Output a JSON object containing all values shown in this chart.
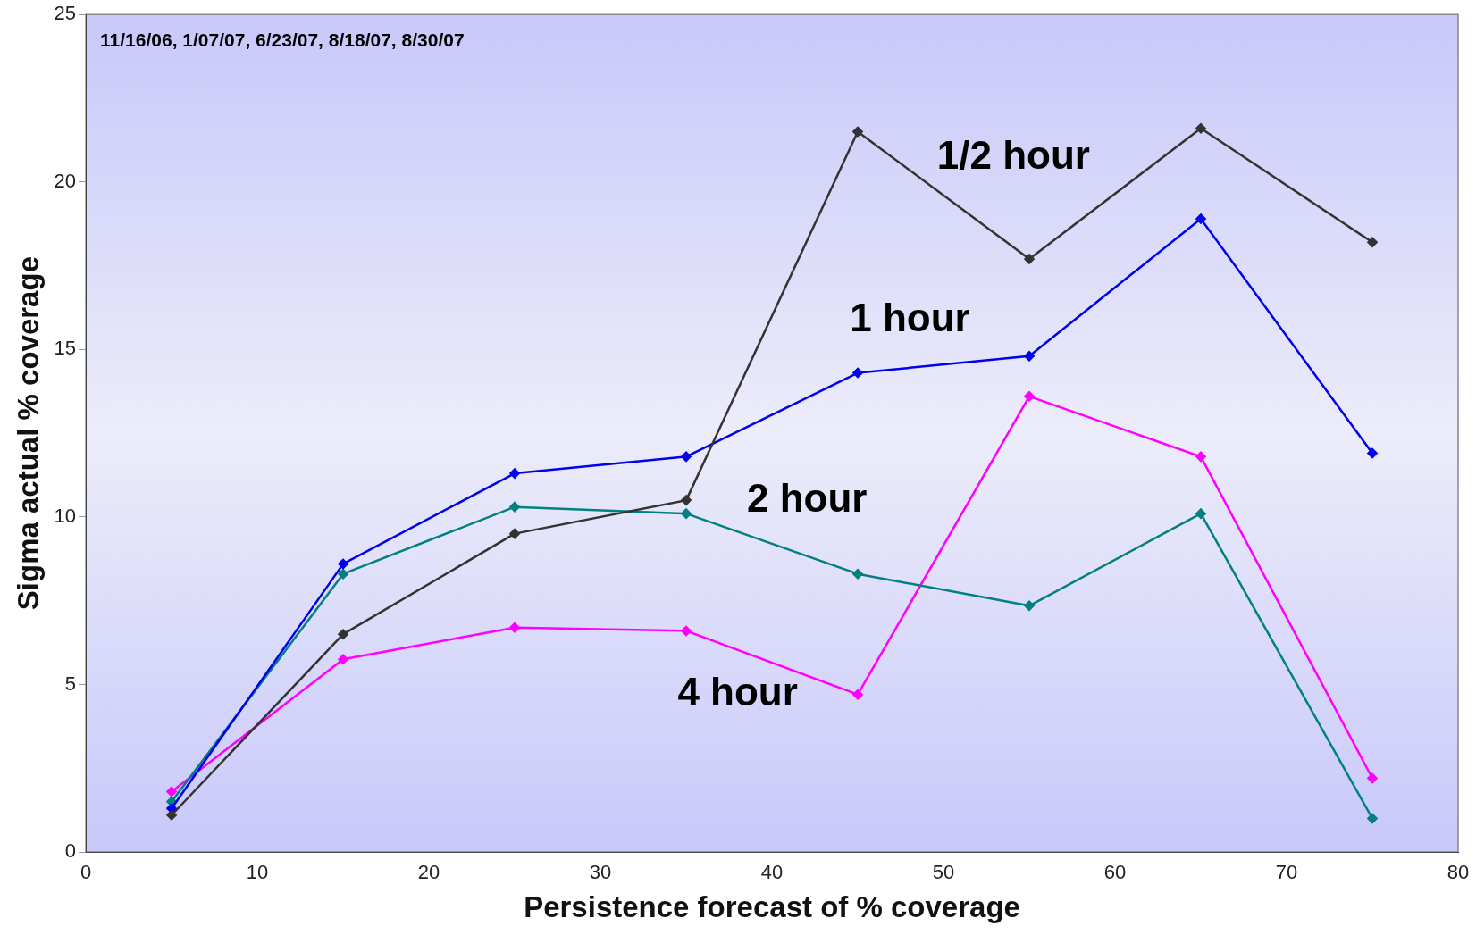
{
  "chart_data": {
    "type": "line",
    "xlabel": "Persistence forecast of % coverage",
    "ylabel": "Sigma actual % coverage",
    "annotations": [
      "11/16/06, 1/07/07, 6/23/07, 8/18/07, 8/30/07"
    ],
    "x": [
      5,
      15,
      25,
      35,
      45,
      55,
      65,
      75
    ],
    "series": [
      {
        "name": "1/2 hour",
        "color": "#333333",
        "values": [
          1.1,
          6.5,
          9.5,
          10.5,
          21.5,
          17.7,
          21.6,
          18.2
        ]
      },
      {
        "name": "1 hour",
        "color": "#0000ee",
        "values": [
          1.3,
          8.6,
          11.3,
          11.8,
          14.3,
          14.8,
          18.9,
          11.9
        ]
      },
      {
        "name": "2 hour",
        "color": "#008080",
        "values": [
          1.5,
          8.3,
          10.3,
          10.1,
          8.3,
          7.35,
          10.1,
          1
        ]
      },
      {
        "name": "4 hour",
        "color": "#ff00ff",
        "values": [
          1.8,
          5.75,
          6.7,
          6.6,
          4.7,
          13.6,
          11.8,
          2.2
        ]
      }
    ],
    "xlim": [
      0,
      80
    ],
    "xticks": [
      0,
      10,
      20,
      30,
      40,
      50,
      60,
      70,
      80
    ],
    "ylim": [
      0,
      25
    ],
    "yticks": [
      0,
      5,
      10,
      15,
      20,
      25
    ],
    "grid": false,
    "legend": false,
    "marker": "diamond",
    "line_style": "solid"
  }
}
